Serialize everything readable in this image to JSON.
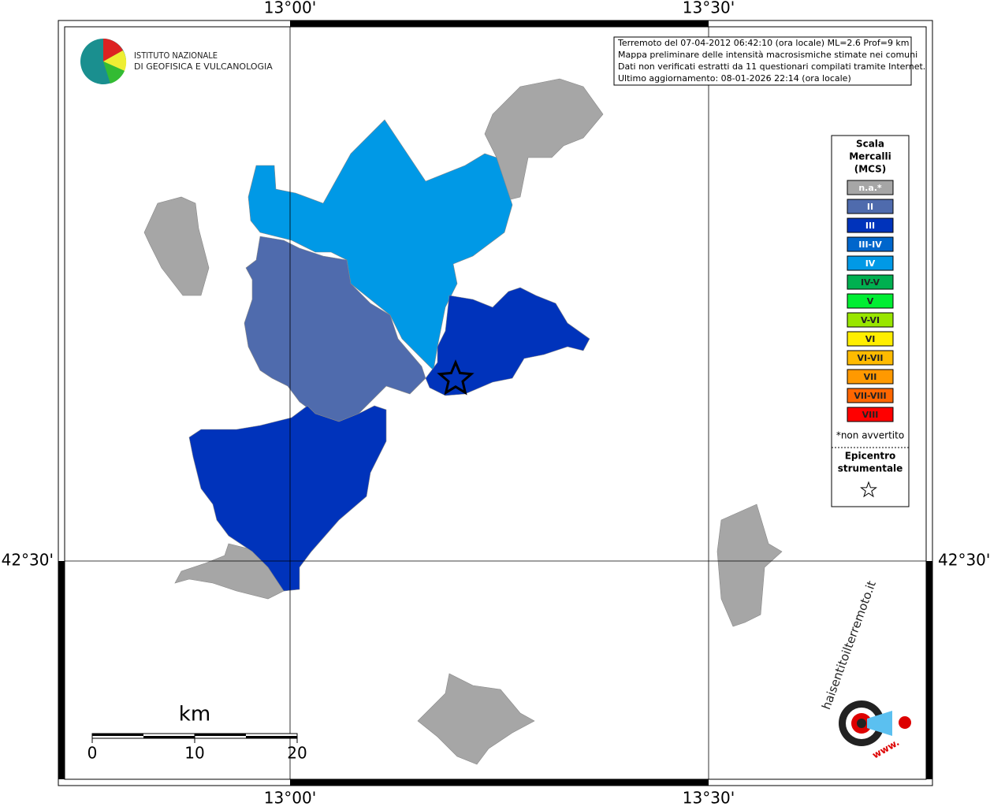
{
  "header": {
    "org": [
      "ISTITUTO NAZIONALE",
      "DI GEOFISICA E VULCANOLOGIA"
    ]
  },
  "info": [
    "Terremoto del 07-04-2012 06:42:10 (ora locale) ML=2.6 Prof=9 km",
    "Mappa preliminare delle intensità macrosismiche stimate nei comuni",
    "Dati non verificati estratti da 11 questionari compilati tramite Internet.",
    "Ultimo aggiornamento: 08-01-2026 22:14 (ora locale)"
  ],
  "axes": {
    "top": [
      "13°00'",
      "13°30'"
    ],
    "bottom": [
      "13°00'",
      "13°30'"
    ],
    "left": [
      "42°30'"
    ],
    "right": [
      "42°30'"
    ]
  },
  "legend": {
    "title": [
      "Scala",
      "Mercalli",
      "(MCS)"
    ],
    "classes": [
      {
        "label": "n.a.*",
        "color": "#a6a6a6"
      },
      {
        "label": "II",
        "color": "#4f6bad"
      },
      {
        "label": "III",
        "color": "#0033bb"
      },
      {
        "label": "III-IV",
        "color": "#0066cc"
      },
      {
        "label": "IV",
        "color": "#0099e6"
      },
      {
        "label": "IV-V",
        "color": "#00b050"
      },
      {
        "label": "V",
        "color": "#00ee33"
      },
      {
        "label": "V-VI",
        "color": "#99e600"
      },
      {
        "label": "VI",
        "color": "#ffee00"
      },
      {
        "label": "VI-VII",
        "color": "#ffbb00"
      },
      {
        "label": "VII",
        "color": "#ff9900"
      },
      {
        "label": "VII-VIII",
        "color": "#ff6600"
      },
      {
        "label": "VIII",
        "color": "#ff0000"
      }
    ],
    "note": "*non avvertito",
    "epicenter": [
      "Epicentro",
      "strumentale"
    ]
  },
  "scalebar": {
    "unit": "km",
    "ticks": [
      0,
      10,
      20
    ]
  },
  "logo2": {
    "site": "haisentitoilterremoto.it",
    "prefix": "www."
  }
}
